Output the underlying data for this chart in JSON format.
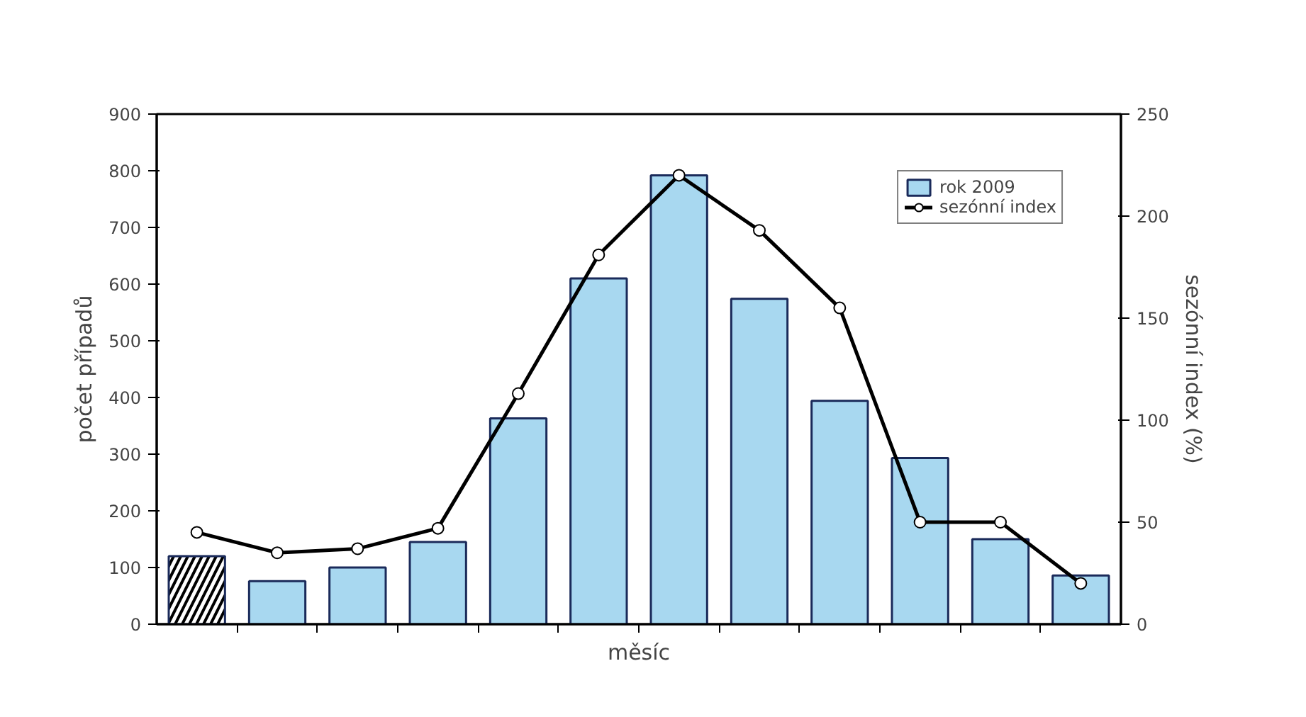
{
  "chart_data": {
    "type": "bar",
    "xlabel": "měsíc",
    "ylabel": "počet případů",
    "y2label": "sezónní index (%)",
    "categories": [
      null,
      null,
      null,
      null,
      null,
      null,
      null,
      null,
      null,
      null,
      null,
      null
    ],
    "series": [
      {
        "name": "rok 2009",
        "color": "#a8d8f0",
        "colors": [
          "#ffffff",
          "#a8d8f0",
          "#a8d8f0",
          "#a8d8f0",
          "#a8d8f0",
          "#a8d8f0",
          "#a8d8f0",
          "#a8d8f0",
          "#a8d8f0",
          "#a8d8f0",
          "#a8d8f0",
          "#a8d8f0"
        ],
        "values": [
          120,
          76,
          100,
          145,
          363,
          610,
          792,
          574,
          394,
          293,
          150,
          86
        ]
      },
      {
        "name": "sezónní index",
        "type": "line",
        "axis": "y2",
        "color": "#000000",
        "values": [
          45,
          35,
          37,
          47,
          113,
          181,
          220,
          193,
          155,
          50,
          50,
          20
        ]
      }
    ],
    "ylim": [
      0,
      900
    ],
    "yticks": [
      0,
      100,
      200,
      300,
      400,
      500,
      600,
      700,
      800,
      900
    ],
    "y2lim": [
      0,
      250
    ],
    "y2ticks": [
      0,
      50,
      100,
      150,
      200,
      250
    ],
    "grid": false,
    "legend": "top right",
    "marker": "circle",
    "line_style": "solid"
  }
}
